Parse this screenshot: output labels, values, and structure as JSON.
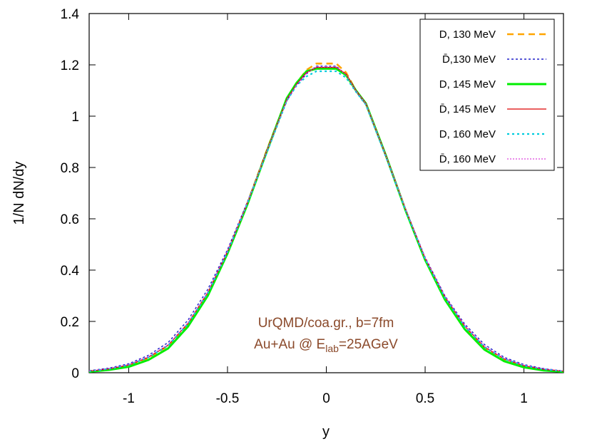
{
  "chart_data": {
    "type": "line",
    "xlabel": "y",
    "ylabel": "1/N dN/dy",
    "xlim": [
      -1.2,
      1.2
    ],
    "ylim": [
      0,
      1.4
    ],
    "xticks": [
      -1,
      -0.5,
      0,
      0.5,
      1
    ],
    "xtick_labels": [
      "-1",
      "-0.5",
      "0",
      "0.5",
      "1"
    ],
    "yticks": [
      0,
      0.2,
      0.4,
      0.6,
      0.8,
      1,
      1.2,
      1.4
    ],
    "ytick_labels": [
      "0",
      "0.2",
      "0.4",
      "0.6",
      "0.8",
      "1",
      "1.2",
      "1.4"
    ],
    "grid": false,
    "legend_position": "top-right",
    "annotation": {
      "line1": "UrQMD/coa.gr., b=7fm",
      "line2_prefix": "Au+Au @ E",
      "line2_sub": "lab",
      "line2_suffix": "=25AGeV",
      "color": "#8b4a2b"
    },
    "x": [
      -1.2,
      -1.1,
      -1.0,
      -0.9,
      -0.8,
      -0.7,
      -0.6,
      -0.5,
      -0.4,
      -0.3,
      -0.2,
      -0.15,
      -0.1,
      -0.05,
      0.0,
      0.05,
      0.1,
      0.15,
      0.2,
      0.3,
      0.4,
      0.5,
      0.6,
      0.7,
      0.8,
      0.9,
      1.0,
      1.1,
      1.2
    ],
    "series": [
      {
        "name": "D, 130 MeV",
        "color": "#ffa500",
        "dash": "9 6",
        "width": 2.6,
        "values": [
          0.006,
          0.014,
          0.028,
          0.058,
          0.105,
          0.19,
          0.31,
          0.47,
          0.66,
          0.87,
          1.07,
          1.13,
          1.18,
          1.205,
          1.205,
          1.205,
          1.17,
          1.1,
          1.05,
          0.85,
          0.635,
          0.44,
          0.29,
          0.175,
          0.095,
          0.05,
          0.025,
          0.012,
          0.005
        ]
      },
      {
        "name": "D̄,130 MeV",
        "color": "#2020c8",
        "dash": "3 3",
        "width": 1.4,
        "values": [
          0.008,
          0.018,
          0.035,
          0.068,
          0.118,
          0.205,
          0.325,
          0.48,
          0.665,
          0.865,
          1.06,
          1.12,
          1.165,
          1.195,
          1.195,
          1.195,
          1.16,
          1.095,
          1.045,
          0.845,
          0.64,
          0.45,
          0.3,
          0.19,
          0.11,
          0.06,
          0.032,
          0.016,
          0.007
        ]
      },
      {
        "name": "D, 145 MeV",
        "color": "#00ee00",
        "dash": "",
        "width": 3.0,
        "values": [
          0.004,
          0.011,
          0.023,
          0.05,
          0.095,
          0.18,
          0.3,
          0.465,
          0.655,
          0.865,
          1.07,
          1.13,
          1.175,
          1.185,
          1.185,
          1.185,
          1.16,
          1.1,
          1.05,
          0.85,
          0.635,
          0.44,
          0.285,
          0.17,
          0.09,
          0.045,
          0.021,
          0.009,
          0.004
        ]
      },
      {
        "name": "D̄, 145 MeV",
        "color": "#dd0000",
        "dash": "",
        "width": 1.2,
        "values": [
          0.006,
          0.015,
          0.03,
          0.06,
          0.107,
          0.192,
          0.312,
          0.472,
          0.66,
          0.868,
          1.065,
          1.125,
          1.17,
          1.19,
          1.19,
          1.19,
          1.165,
          1.1,
          1.05,
          0.85,
          0.64,
          0.447,
          0.296,
          0.182,
          0.1,
          0.054,
          0.027,
          0.013,
          0.006
        ]
      },
      {
        "name": "D, 160 MeV",
        "color": "#00ccdd",
        "dash": "3 4",
        "width": 2.2,
        "values": [
          0.006,
          0.015,
          0.03,
          0.06,
          0.106,
          0.19,
          0.31,
          0.47,
          0.66,
          0.86,
          1.06,
          1.12,
          1.155,
          1.175,
          1.175,
          1.175,
          1.15,
          1.095,
          1.045,
          0.845,
          0.636,
          0.444,
          0.293,
          0.18,
          0.1,
          0.054,
          0.028,
          0.014,
          0.006
        ]
      },
      {
        "name": "D̄, 160 MeV",
        "color": "#dd44dd",
        "dash": "2 2",
        "width": 1.2,
        "values": [
          0.007,
          0.016,
          0.032,
          0.063,
          0.11,
          0.195,
          0.315,
          0.475,
          0.662,
          0.866,
          1.062,
          1.122,
          1.168,
          1.192,
          1.192,
          1.192,
          1.162,
          1.098,
          1.048,
          0.848,
          0.64,
          0.448,
          0.298,
          0.185,
          0.104,
          0.056,
          0.03,
          0.015,
          0.007
        ]
      }
    ]
  }
}
